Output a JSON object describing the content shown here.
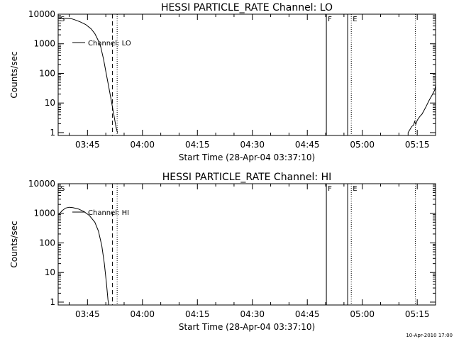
{
  "footer": {
    "timestamp": "10-Apr-2010 17:00"
  },
  "chart_data": [
    {
      "type": "line",
      "title": "HESSI PARTICLE_RATE Channel: LO",
      "xlabel": "Start Time (28-Apr-04 03:37:10)",
      "ylabel": "Counts/sec",
      "yscale": "log",
      "ylim": [
        0.8,
        10000
      ],
      "xlim_minutes": [
        217,
        320
      ],
      "x_tick_labels": [
        "03:45",
        "04:00",
        "04:15",
        "04:30",
        "04:45",
        "05:00",
        "05:15"
      ],
      "x_tick_minutes": [
        225,
        240,
        255,
        270,
        285,
        300,
        315
      ],
      "y_tick_labels": [
        "1",
        "10",
        "100",
        "1000",
        "10000"
      ],
      "y_tick_values": [
        1,
        10,
        100,
        1000,
        10000
      ],
      "legend": {
        "label": "Channel: LO",
        "placement": "top-left"
      },
      "series": [
        {
          "name": "Channel: LO",
          "segments": [
            [
              [
                217.2,
                7200
              ],
              [
                219,
                7200
              ],
              [
                220.5,
                7100
              ],
              [
                221.5,
                6500
              ],
              [
                223,
                5500
              ],
              [
                224.5,
                4500
              ],
              [
                226,
                3200
              ],
              [
                227,
                2200
              ],
              [
                227.8,
                1400
              ],
              [
                228.6,
                800
              ],
              [
                229.4,
                300
              ],
              [
                230.1,
                100
              ],
              [
                230.8,
                35
              ],
              [
                231.5,
                12
              ],
              [
                232.2,
                4
              ],
              [
                232.8,
                1.5
              ],
              [
                233.2,
                1
              ]
            ],
            [
              [
                312.5,
                0.8
              ],
              [
                312.5,
                1
              ],
              [
                313.5,
                1.6
              ],
              [
                314,
                1.8
              ],
              [
                314.3,
                2.4
              ],
              [
                314.6,
                1.9
              ],
              [
                315,
                2.6
              ],
              [
                315.4,
                3.1
              ],
              [
                315.8,
                3.6
              ],
              [
                316.3,
                4.2
              ],
              [
                316.8,
                5.5
              ],
              [
                317.5,
                8
              ],
              [
                318.2,
                12
              ],
              [
                319,
                18
              ],
              [
                319.8,
                28
              ],
              [
                320,
                40
              ]
            ]
          ]
        }
      ],
      "markers": [
        {
          "label": "S",
          "minute": 217.2,
          "style": "solid-edge"
        },
        {
          "label": "",
          "minute": 231.8,
          "style": "dashed"
        },
        {
          "label": "",
          "minute": 233.1,
          "style": "dotted"
        },
        {
          "label": "F",
          "minute": 290.2,
          "style": "solid"
        },
        {
          "label": "",
          "minute": 296.0,
          "style": "solid"
        },
        {
          "label": "E",
          "minute": 297.0,
          "style": "dotted"
        },
        {
          "label": "",
          "minute": 314.5,
          "style": "dotted"
        }
      ]
    },
    {
      "type": "line",
      "title": "HESSI PARTICLE_RATE Channel: HI",
      "xlabel": "Start Time (28-Apr-04 03:37:10)",
      "ylabel": "Counts/sec",
      "yscale": "log",
      "ylim": [
        0.8,
        10000
      ],
      "xlim_minutes": [
        217,
        320
      ],
      "x_tick_labels": [
        "03:45",
        "04:00",
        "04:15",
        "04:30",
        "04:45",
        "05:00",
        "05:15"
      ],
      "x_tick_minutes": [
        225,
        240,
        255,
        270,
        285,
        300,
        315
      ],
      "y_tick_labels": [
        "1",
        "10",
        "100",
        "1000",
        "10000"
      ],
      "y_tick_values": [
        1,
        10,
        100,
        1000,
        10000
      ],
      "legend": {
        "label": "Channel: HI",
        "placement": "top-left"
      },
      "series": [
        {
          "name": "Channel: HI",
          "segments": [
            [
              [
                217.2,
                900
              ],
              [
                218,
                1200
              ],
              [
                219,
                1500
              ],
              [
                220,
                1600
              ],
              [
                221,
                1550
              ],
              [
                222.5,
                1400
              ],
              [
                224,
                1150
              ],
              [
                225.5,
                850
              ],
              [
                227,
                500
              ],
              [
                228,
                250
              ],
              [
                228.9,
                80
              ],
              [
                229.6,
                20
              ],
              [
                230.2,
                4
              ],
              [
                230.6,
                1.2
              ],
              [
                230.8,
                0.8
              ]
            ]
          ]
        }
      ],
      "markers": [
        {
          "label": "S",
          "minute": 217.2,
          "style": "solid-edge"
        },
        {
          "label": "",
          "minute": 231.8,
          "style": "dashed"
        },
        {
          "label": "",
          "minute": 233.1,
          "style": "dotted"
        },
        {
          "label": "F",
          "minute": 290.2,
          "style": "solid"
        },
        {
          "label": "",
          "minute": 296.0,
          "style": "solid"
        },
        {
          "label": "E",
          "minute": 297.0,
          "style": "dotted"
        },
        {
          "label": "",
          "minute": 314.5,
          "style": "dotted"
        }
      ]
    }
  ]
}
